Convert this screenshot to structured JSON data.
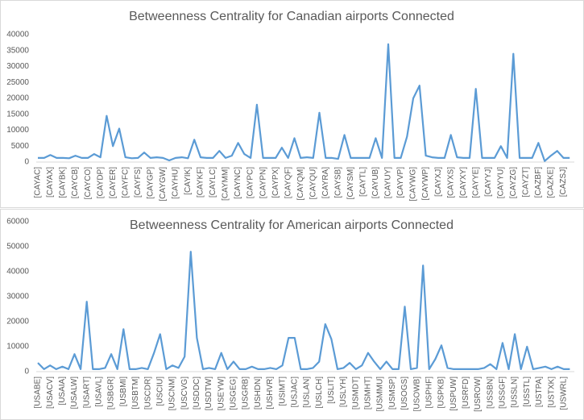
{
  "chart_data": [
    {
      "type": "line",
      "title": "Betweenness Centrality for Canadian airports Connected",
      "categories": [
        "[CAYAC]",
        null,
        "[CAYAX]",
        null,
        "[CAYBK]",
        null,
        "[CAYCB]",
        null,
        "[CAYCO]",
        null,
        "[CAYDP]",
        null,
        "[CAYER]",
        null,
        "[CAYFC]",
        null,
        "[CAYFS]",
        null,
        "[CAYGP]",
        null,
        "[CAYGW]",
        null,
        "[CAYHU]",
        null,
        "[CAYIK]",
        null,
        "[CAYKF]",
        null,
        "[CAYLC]",
        null,
        "[CAYMM]",
        null,
        "[CAYNC]",
        null,
        "[CAYPC]",
        null,
        "[CAYPN]",
        null,
        "[CAYPX]",
        null,
        "[CAYQF]",
        null,
        "[CAYQM]",
        null,
        "[CAYQU]",
        null,
        "[CAYRA]",
        null,
        "[CAYSB]",
        null,
        "[CAYSM]",
        null,
        "[CAYTL]",
        null,
        "[CAYUB]",
        null,
        "[CAYUY]",
        null,
        "[CAYVP]",
        null,
        "[CAYWG]",
        null,
        "[CAYWP]",
        null,
        "[CAYXJ]",
        null,
        "[CAYXS]",
        null,
        "[CAYXY]",
        null,
        "[CAYYE]",
        null,
        "[CAYYJ]",
        null,
        "[CAYYU]",
        null,
        "[CAYZG]",
        null,
        "[CAYZT]",
        null,
        "[CAZBF]",
        null,
        "[CAZKE]",
        null,
        "[CAZSJ]",
        null
      ],
      "values": [
        1300,
        1300,
        2200,
        1300,
        1300,
        1200,
        2000,
        1300,
        1300,
        2500,
        1500,
        14500,
        5000,
        10500,
        1500,
        1200,
        1300,
        3000,
        1300,
        1500,
        1300,
        500,
        1300,
        1500,
        1200,
        7000,
        1500,
        1300,
        1300,
        3500,
        1300,
        2000,
        6000,
        2500,
        1300,
        18000,
        1300,
        1300,
        1300,
        4500,
        1300,
        7500,
        1300,
        1500,
        1300,
        15500,
        1300,
        1300,
        1000,
        8500,
        1300,
        1300,
        1300,
        1300,
        7500,
        1300,
        37000,
        1300,
        1300,
        8000,
        20000,
        24000,
        2000,
        1500,
        1300,
        1300,
        8500,
        1500,
        1300,
        1300,
        23000,
        1300,
        1300,
        1300,
        5000,
        1300,
        34000,
        1300,
        1300,
        1300,
        6000,
        300,
        2000,
        3500,
        1300,
        1300
      ],
      "color": "#5b9bd5",
      "ylim": [
        0,
        40000
      ],
      "yticks": [
        0,
        5000,
        10000,
        15000,
        20000,
        25000,
        30000,
        35000,
        40000
      ]
    },
    {
      "type": "line",
      "title": "Betweenness Centrality for American airports Connected",
      "categories": [
        "[USABE]",
        null,
        "[USACV]",
        null,
        "[USAIA]",
        null,
        "[USALW]",
        null,
        "[USART]",
        null,
        "[USAVL]",
        null,
        "[USBGR]",
        null,
        "[USBMI]",
        null,
        "[USBTM]",
        null,
        "[USCDR]",
        null,
        "[USCIU]",
        null,
        "[USCNM]",
        null,
        "[USCVG]",
        null,
        "[USDDC]",
        null,
        "[USDTW]",
        null,
        "[USEYW]",
        null,
        "[USGEG]",
        null,
        "[USGRB]",
        null,
        "[USHDN]",
        null,
        "[USHVR]",
        null,
        "[USIMT]",
        null,
        "[USJAC]",
        null,
        "[USLAN]",
        null,
        "[USLCH]",
        null,
        "[USLIT]",
        null,
        "[USLYH]",
        null,
        "[USMDT]",
        null,
        "[USMHT]",
        null,
        "[USMMU]",
        null,
        "[USMSP]",
        null,
        "[USOGS]",
        null,
        "[USOWB]",
        null,
        "[USPHF]",
        null,
        "[USPKB]",
        null,
        "[USPUW]",
        null,
        "[USRFD]",
        null,
        "[USROW]",
        null,
        "[USSBN]",
        null,
        "[USSGF]",
        null,
        "[USSLN]",
        null,
        "[USSTL]",
        null,
        "[USTPA]",
        null,
        "[USTXK]",
        null,
        "[USWRL]",
        null
      ],
      "values": [
        3500,
        1000,
        2500,
        1000,
        2000,
        1000,
        7000,
        1000,
        28000,
        1000,
        1000,
        1500,
        7000,
        1000,
        17000,
        1000,
        1000,
        1500,
        1000,
        7500,
        15000,
        1000,
        2500,
        1500,
        6000,
        48000,
        13500,
        1000,
        1500,
        1000,
        7500,
        1000,
        4000,
        1000,
        1000,
        2000,
        1000,
        1000,
        1500,
        1000,
        2500,
        13500,
        13500,
        1000,
        1000,
        1500,
        4000,
        19000,
        13000,
        1000,
        1500,
        3500,
        1000,
        2500,
        7500,
        4000,
        1000,
        4000,
        1000,
        1000,
        26000,
        1000,
        1500,
        42500,
        1000,
        5000,
        10500,
        1500,
        1000,
        1000,
        1000,
        1000,
        1000,
        1500,
        3000,
        1000,
        11500,
        1000,
        15000,
        1000,
        10000,
        1000,
        1500,
        2000,
        1000,
        2000,
        1000,
        1000
      ],
      "color": "#5b9bd5",
      "ylim": [
        0,
        60000
      ],
      "yticks": [
        0,
        10000,
        20000,
        30000,
        40000,
        50000,
        60000
      ]
    }
  ]
}
